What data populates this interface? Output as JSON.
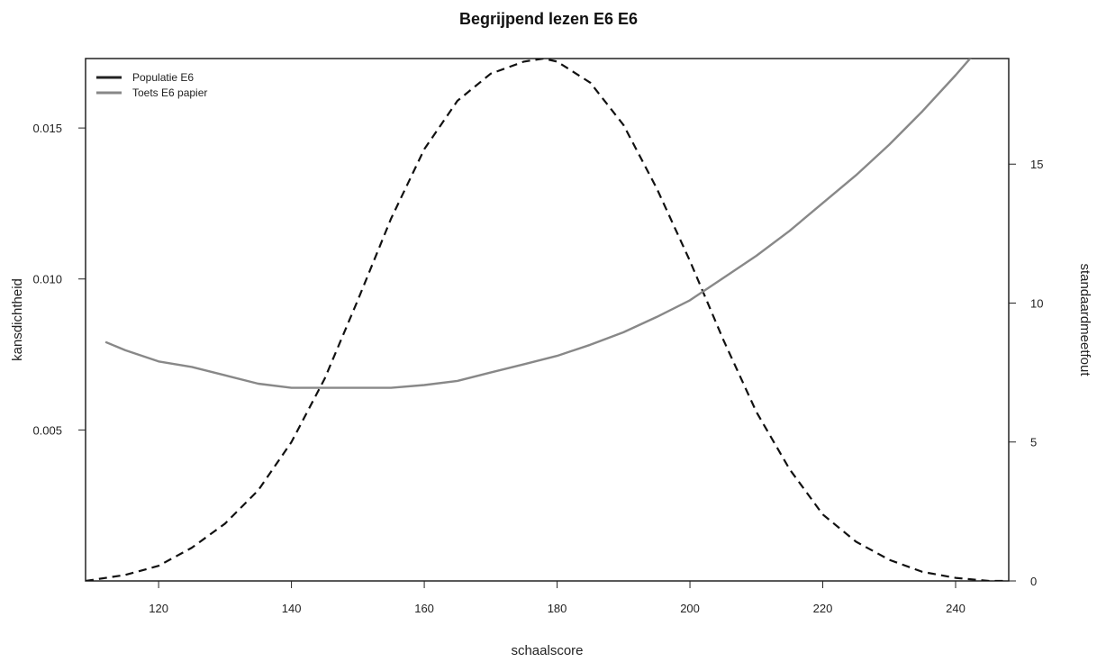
{
  "chart_data": {
    "type": "line",
    "title": "Begrijpend lezen E6 E6",
    "xlabel": "schaalscore",
    "ylabel": "kansdichtheid",
    "y2label": "standaardmeetfout",
    "xlim": [
      109,
      248
    ],
    "ylim": [
      0,
      0.0173
    ],
    "y2lim": [
      0,
      18.8
    ],
    "x_ticks": [
      "120",
      "140",
      "160",
      "180",
      "200",
      "220",
      "240"
    ],
    "y_ticks": [
      "0.005",
      "0.010",
      "0.015"
    ],
    "y2_ticks": [
      "0",
      "5",
      "10",
      "15"
    ],
    "grid": false,
    "legend_position": "top-left",
    "legend": [
      {
        "label": "Populatie E6",
        "color": "#222222"
      },
      {
        "label": "Toets E6 papier",
        "color": "#888888"
      }
    ],
    "series": [
      {
        "name": "Populatie E6",
        "axis": "left",
        "style": "dashed",
        "color": "#111111",
        "x": [
          109,
          115,
          120,
          125,
          130,
          135,
          140,
          145,
          150,
          155,
          160,
          165,
          170,
          175,
          178,
          180,
          185,
          190,
          195,
          200,
          205,
          210,
          215,
          220,
          225,
          230,
          235,
          240,
          245,
          248
        ],
        "y": [
          0.0,
          0.0002,
          0.0005,
          0.0011,
          0.0019,
          0.003,
          0.0046,
          0.0067,
          0.0093,
          0.012,
          0.0143,
          0.0159,
          0.0168,
          0.0172,
          0.0173,
          0.0172,
          0.0165,
          0.0151,
          0.013,
          0.0106,
          0.008,
          0.0056,
          0.0037,
          0.0022,
          0.0013,
          0.0007,
          0.0003,
          0.0001,
          0.0,
          0.0
        ]
      },
      {
        "name": "Toets E6 papier",
        "axis": "right",
        "style": "solid",
        "color": "#888888",
        "x": [
          112,
          115,
          120,
          125,
          130,
          135,
          140,
          145,
          150,
          155,
          160,
          165,
          170,
          175,
          180,
          185,
          190,
          195,
          200,
          205,
          210,
          215,
          220,
          225,
          230,
          235,
          240,
          244
        ],
        "y": [
          8.6,
          8.3,
          7.9,
          7.7,
          7.4,
          7.1,
          6.95,
          6.95,
          6.95,
          6.95,
          7.05,
          7.2,
          7.5,
          7.8,
          8.1,
          8.5,
          8.95,
          9.5,
          10.1,
          10.9,
          11.7,
          12.6,
          13.6,
          14.6,
          15.7,
          16.9,
          18.2,
          19.3
        ]
      }
    ]
  }
}
